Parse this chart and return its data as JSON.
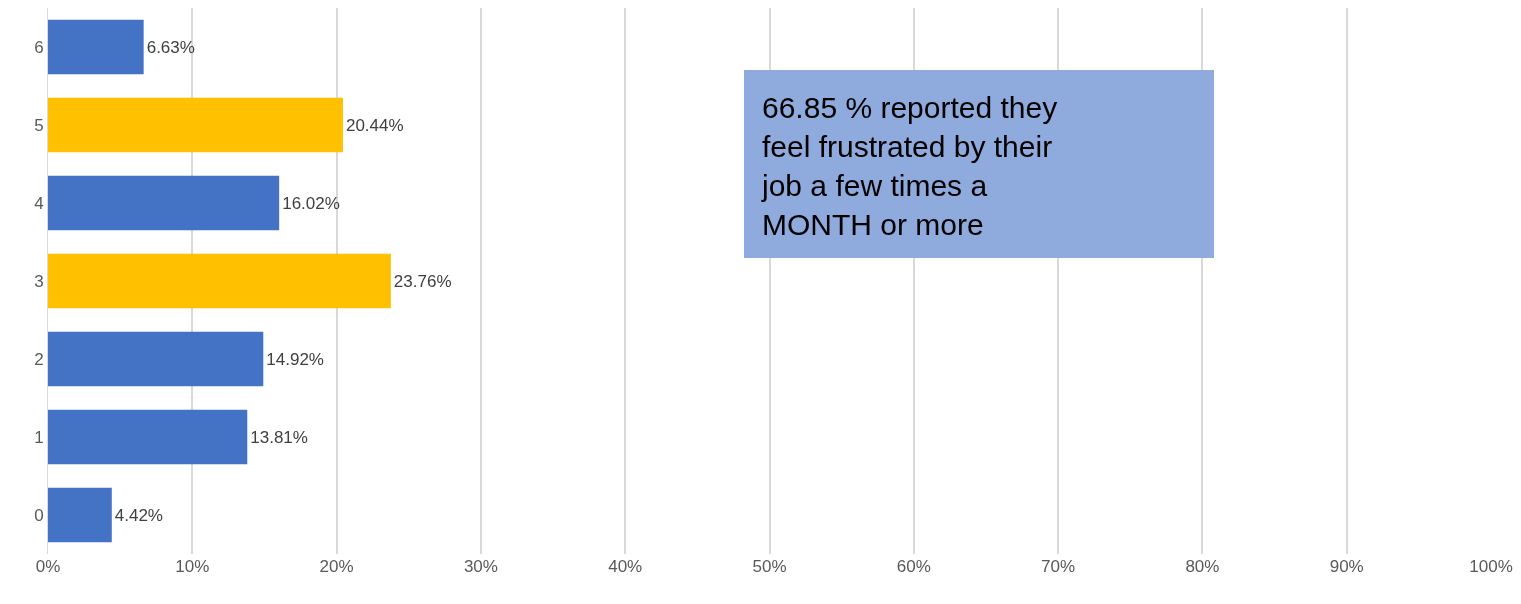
{
  "chart_data": {
    "type": "bar",
    "orientation": "horizontal",
    "categories": [
      "6",
      "5",
      "4",
      "3",
      "2",
      "1",
      "0"
    ],
    "values": [
      6.63,
      20.44,
      16.02,
      23.76,
      14.92,
      13.81,
      4.42
    ],
    "colors": [
      "#4472c4",
      "#ffc000",
      "#4472c4",
      "#ffc000",
      "#4472c4",
      "#4472c4",
      "#4472c4"
    ],
    "value_labels": [
      "6.63%",
      "20.44%",
      "16.02%",
      "23.76%",
      "14.92%",
      "13.81%",
      "4.42%"
    ],
    "xlim": [
      0,
      100
    ],
    "xticks": [
      {
        "value": 0,
        "label": "0%"
      },
      {
        "value": 10,
        "label": "10%"
      },
      {
        "value": 20,
        "label": "20%"
      },
      {
        "value": 30,
        "label": "30%"
      },
      {
        "value": 40,
        "label": "40%"
      },
      {
        "value": 50,
        "label": "50%"
      },
      {
        "value": 60,
        "label": "60%"
      },
      {
        "value": 70,
        "label": "70%"
      },
      {
        "value": 80,
        "label": "80%"
      },
      {
        "value": 90,
        "label": "90%"
      },
      {
        "value": 100,
        "label": "100%"
      }
    ],
    "grid": "x",
    "legend": false,
    "annotations": [
      "66.85 % reported they\nfeel frustrated by their\njob a few times a\nMONTH or more"
    ]
  }
}
